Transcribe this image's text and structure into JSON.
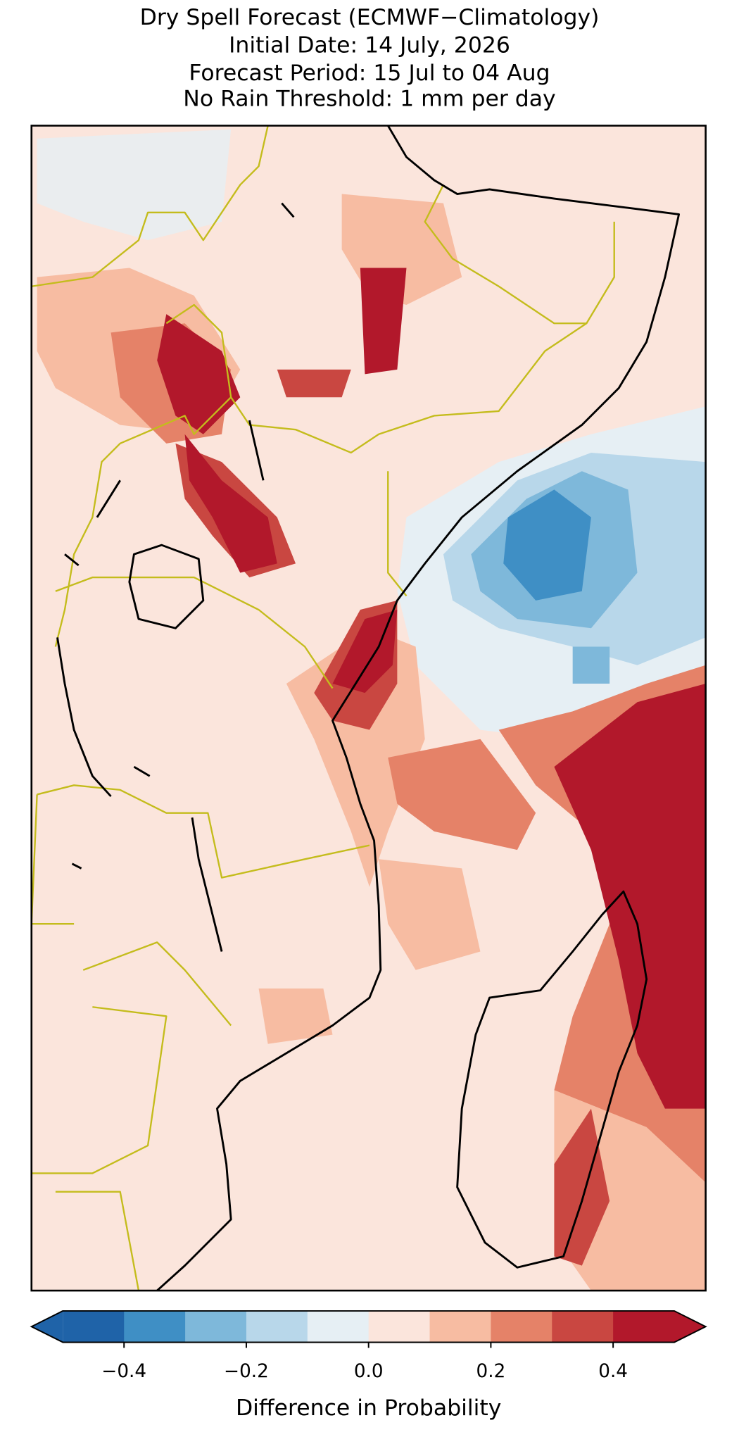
{
  "chart_data": {
    "type": "map",
    "title_lines": [
      "Dry Spell Forecast (ECMWF−Climatology)",
      "Initial Date: 14 July, 2026",
      "Forecast Period: 15 Jul to 04 Aug",
      "No Rain Threshold: 1 mm per day"
    ],
    "colorbar": {
      "label": "Difference in Probability",
      "extend": "both",
      "boundaries": [
        -0.5,
        -0.4,
        -0.3,
        -0.2,
        -0.1,
        0,
        0.1,
        0.2,
        0.3,
        0.4,
        0.5
      ],
      "colors": [
        "#1f63a8",
        "#3f8fc5",
        "#7eb8da",
        "#b8d7ea",
        "#e6eff4",
        "#fbe5dc",
        "#f7bca2",
        "#e58268",
        "#c94741",
        "#b2182b"
      ],
      "ticks": [
        {
          "value": -0.4,
          "label": "−0.4"
        },
        {
          "value": -0.2,
          "label": "−0.2"
        },
        {
          "value": 0,
          "label": "0.0"
        },
        0.2,
        0.4
      ]
    }
  }
}
